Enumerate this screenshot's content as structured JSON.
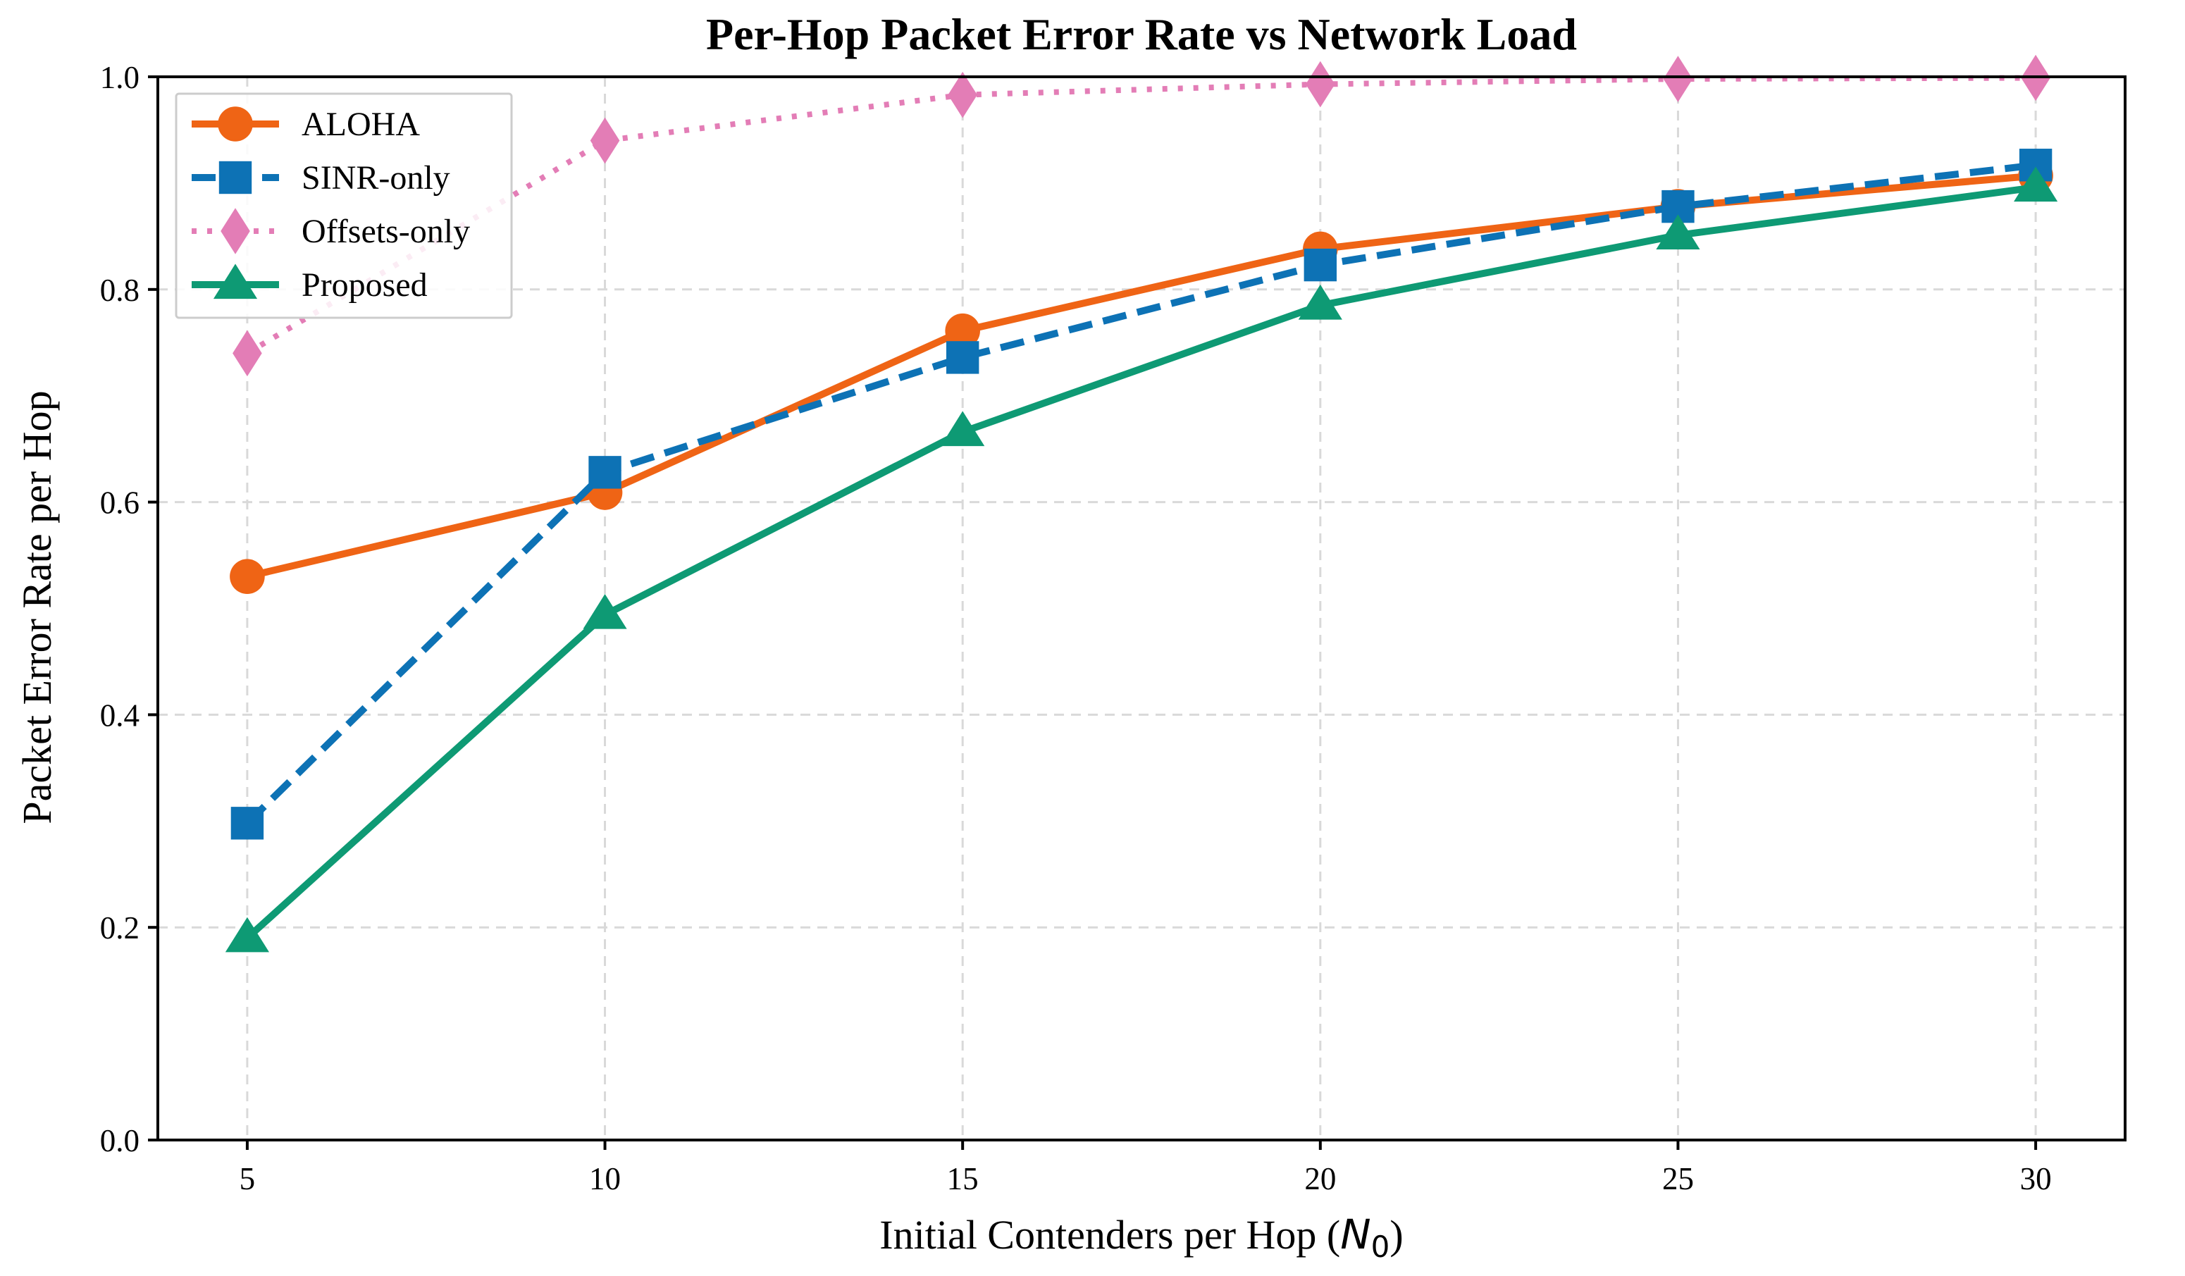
{
  "chart_data": {
    "type": "line",
    "title": "Per-Hop Packet Error Rate vs Network Load",
    "xlabel": "Initial Contenders per Hop (N₀)",
    "xlabel_prefix": "Initial Contenders per Hop (",
    "xlabel_symbol": "N",
    "xlabel_subscript": "0",
    "xlabel_suffix": ")",
    "ylabel": "Packet Error Rate per Hop",
    "x": [
      5,
      10,
      15,
      20,
      25,
      30
    ],
    "xticks": [
      "5",
      "10",
      "15",
      "20",
      "25",
      "30"
    ],
    "yticks": [
      "0.0",
      "0.2",
      "0.4",
      "0.6",
      "0.8",
      "1.0"
    ],
    "xlim": [
      3.75,
      31.25
    ],
    "ylim": [
      0.0,
      1.0
    ],
    "grid": true,
    "legend_position": "top-left",
    "series": [
      {
        "name": "ALOHA",
        "values": [
          0.53,
          0.609,
          0.761,
          0.838,
          0.878,
          0.907
        ],
        "color": "#ef6415",
        "marker": "circle",
        "line_style": "solid"
      },
      {
        "name": "SINR-only",
        "values": [
          0.298,
          0.628,
          0.736,
          0.823,
          0.878,
          0.917
        ],
        "color": "#0d72b5",
        "marker": "square",
        "line_style": "dashed"
      },
      {
        "name": "Offsets-only",
        "values": [
          0.74,
          0.94,
          0.983,
          0.993,
          0.998,
          0.999
        ],
        "color": "#e37db6",
        "marker": "diamond",
        "line_style": "dotted"
      },
      {
        "name": "Proposed",
        "values": [
          0.19,
          0.494,
          0.666,
          0.785,
          0.851,
          0.896
        ],
        "color": "#0e9a74",
        "marker": "triangle",
        "line_style": "solid"
      }
    ]
  }
}
